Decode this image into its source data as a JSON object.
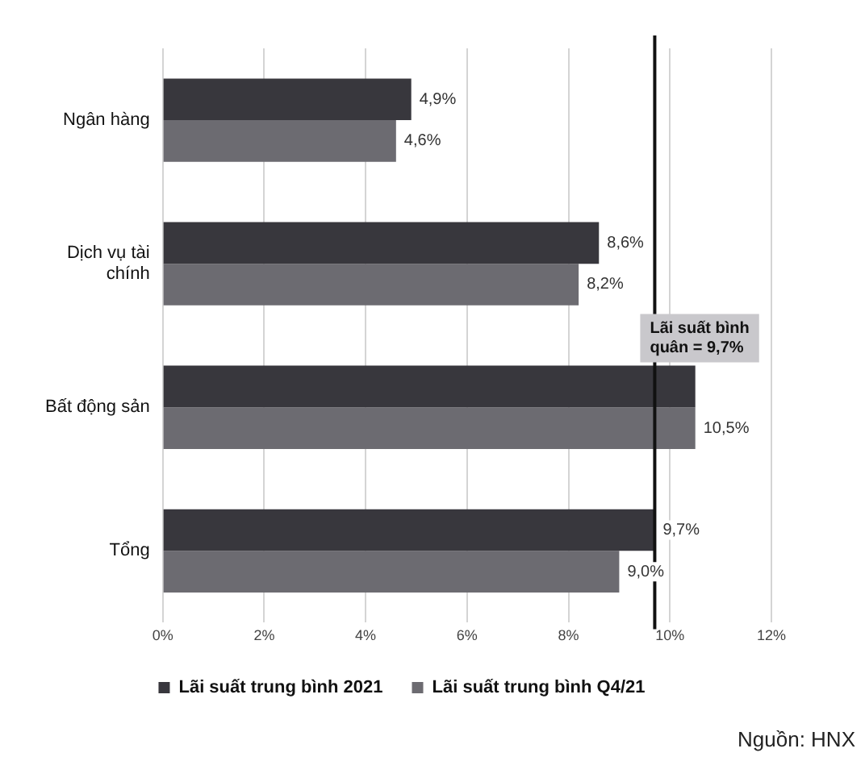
{
  "chart_data": {
    "type": "bar",
    "orientation": "horizontal",
    "categories": [
      "Ngân hàng",
      "Dịch vụ tài chính",
      "Bất động sản",
      "Tổng"
    ],
    "series": [
      {
        "name": "Lãi suất trung bình 2021",
        "color": "#38373d",
        "values": [
          4.9,
          8.6,
          10.5,
          9.7
        ],
        "value_labels": [
          "4,9%",
          "8,6%",
          null,
          "9,7%"
        ]
      },
      {
        "name": "Lãi suất trung bình Q4/21",
        "color": "#6c6b71",
        "values": [
          4.6,
          8.2,
          10.5,
          9.0
        ],
        "value_labels": [
          "4,6%",
          "8,2%",
          "10,5%",
          "9,0%"
        ]
      }
    ],
    "xlim": [
      0,
      12
    ],
    "xticks": [
      {
        "value": 0,
        "label": "0%"
      },
      {
        "value": 2,
        "label": "2%"
      },
      {
        "value": 4,
        "label": "4%"
      },
      {
        "value": 6,
        "label": "6%"
      },
      {
        "value": 8,
        "label": "8%"
      },
      {
        "value": 10,
        "label": "10%"
      },
      {
        "value": 12,
        "label": "12%"
      }
    ],
    "grid": "x",
    "legend": "bottom",
    "ref_lines": [
      {
        "axis": "x",
        "value": 9.7,
        "label": "Lãi suất bình quân = 9,7%",
        "color": "#111111"
      }
    ],
    "annotations": [
      "Nguồn: HNX"
    ]
  }
}
